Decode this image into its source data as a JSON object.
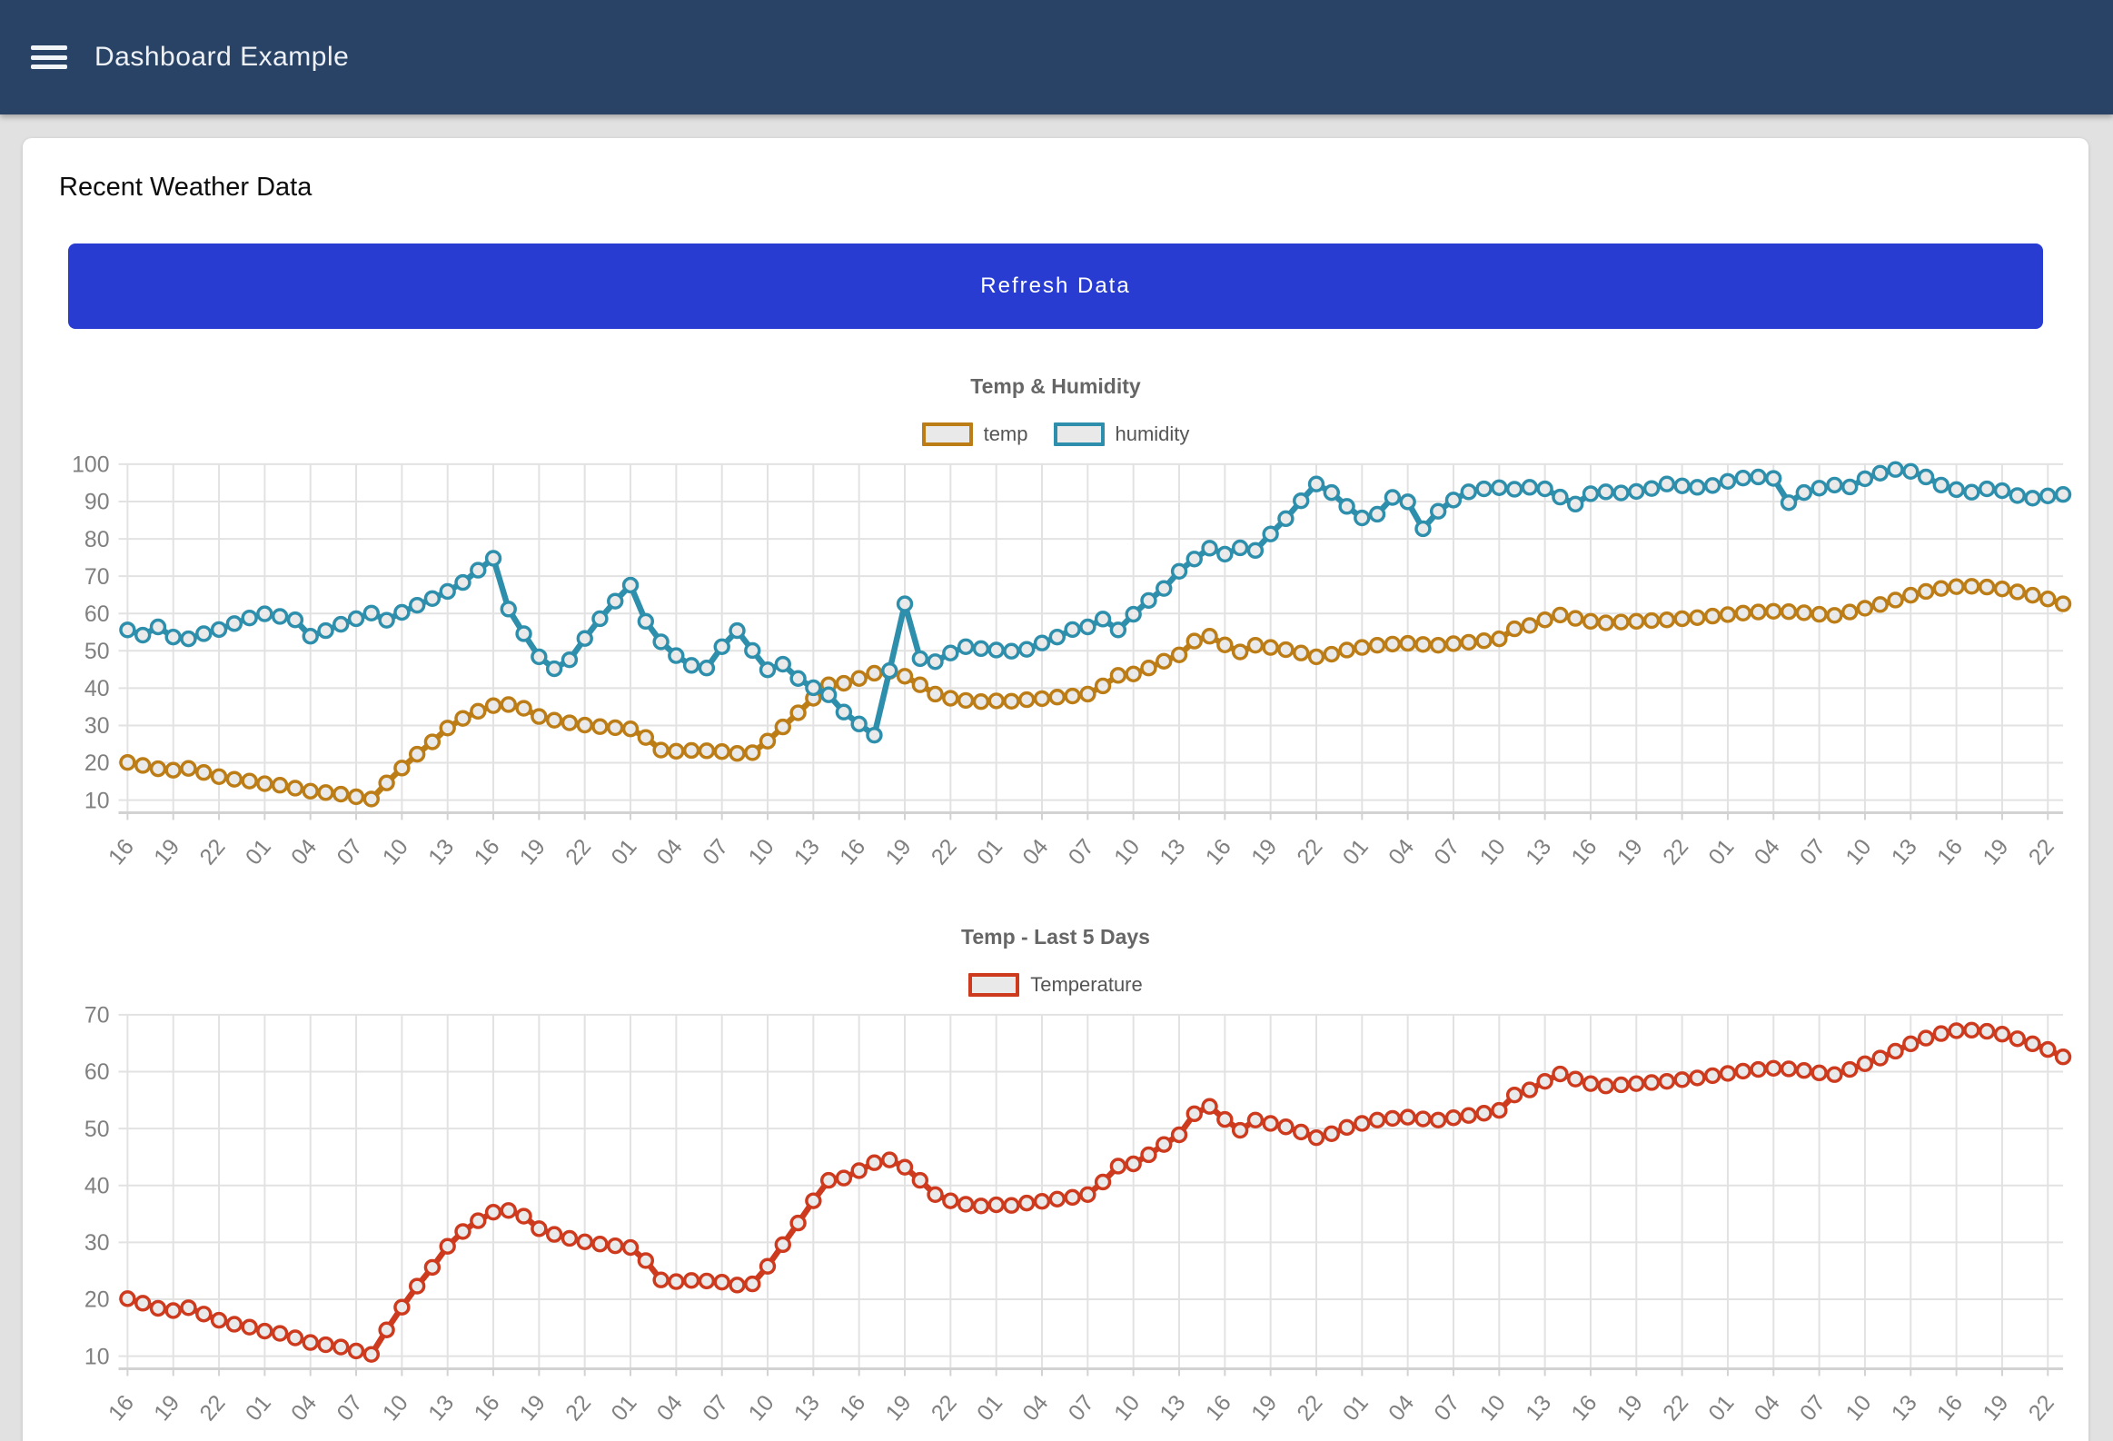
{
  "header": {
    "title": "Dashboard Example",
    "menu_icon": "hamburger-icon"
  },
  "page": {
    "heading": "Recent Weather Data"
  },
  "toolbar": {
    "refresh_label": "Refresh Data"
  },
  "colors": {
    "header_bg": "#294366",
    "button_bg": "#283cd2",
    "temp_series": "#bc7c16",
    "humidity_series": "#2e8fac",
    "temperature_series": "#cd3a1d",
    "marker_fill": "#eaeaea",
    "gridline": "#e2e2e2",
    "axis_line": "#d2d2d2",
    "tick_text": "#808080",
    "title_text": "#666666"
  },
  "chart_data": [
    {
      "type": "line",
      "title": "Temp & Humidity",
      "legend_position": "top",
      "grid": true,
      "ylim": [
        10,
        100
      ],
      "y_ticks": [
        10,
        20,
        30,
        40,
        50,
        60,
        70,
        80,
        90,
        100
      ],
      "x_tick_interval_hours": 3,
      "x_tick_labels": [
        "16",
        "19",
        "22",
        "01",
        "04",
        "07",
        "10",
        "13",
        "16",
        "19",
        "22",
        "01",
        "04",
        "07",
        "10",
        "13",
        "16",
        "19",
        "22",
        "01",
        "04",
        "07",
        "10",
        "13",
        "16",
        "19",
        "22",
        "01",
        "04",
        "07",
        "10",
        "13",
        "16",
        "19",
        "22",
        "01",
        "04",
        "07",
        "10",
        "13",
        "16",
        "19",
        "22"
      ],
      "series": [
        {
          "name": "temp",
          "color": "#bc7c16",
          "values": [
            20.1,
            19.3,
            18.4,
            18.0,
            18.5,
            17.4,
            16.3,
            15.6,
            15.1,
            14.4,
            14.0,
            13.2,
            12.4,
            12.0,
            11.6,
            10.9,
            10.3,
            14.6,
            18.6,
            22.3,
            25.6,
            29.3,
            31.9,
            33.8,
            35.3,
            35.6,
            34.6,
            32.4,
            31.4,
            30.7,
            30.1,
            29.7,
            29.4,
            29.1,
            26.8,
            23.4,
            23.1,
            23.3,
            23.2,
            23.0,
            22.5,
            22.7,
            25.8,
            29.6,
            33.4,
            37.3,
            40.9,
            41.3,
            42.6,
            44.0,
            44.5,
            43.2,
            40.9,
            38.4,
            37.3,
            36.7,
            36.4,
            36.6,
            36.5,
            36.9,
            37.2,
            37.6,
            37.9,
            38.4,
            40.6,
            43.4,
            43.8,
            45.4,
            47.2,
            48.9,
            52.6,
            53.9,
            51.6,
            49.7,
            51.5,
            50.9,
            50.3,
            49.4,
            48.4,
            49.1,
            50.2,
            50.9,
            51.5,
            51.8,
            52.0,
            51.7,
            51.5,
            51.9,
            52.3,
            52.7,
            53.2,
            55.9,
            56.8,
            58.3,
            59.6,
            58.7,
            57.9,
            57.5,
            57.7,
            57.9,
            58.1,
            58.3,
            58.6,
            58.9,
            59.3,
            59.7,
            60.1,
            60.4,
            60.6,
            60.5,
            60.2,
            59.8,
            59.5,
            60.4,
            61.4,
            62.4,
            63.6,
            64.9,
            65.9,
            66.7,
            67.2,
            67.3,
            67.1,
            66.6,
            65.8,
            64.9,
            63.9,
            62.6
          ]
        },
        {
          "name": "humidity",
          "color": "#2e8fac",
          "values": [
            55.6,
            54.2,
            56.4,
            53.7,
            53.2,
            54.6,
            55.7,
            57.3,
            58.8,
            59.9,
            59.2,
            58.3,
            53.9,
            55.4,
            57.1,
            58.6,
            60.1,
            58.2,
            60.3,
            62.2,
            64.0,
            65.9,
            68.3,
            71.6,
            74.8,
            61.2,
            54.6,
            48.4,
            45.2,
            47.6,
            53.3,
            58.6,
            63.3,
            67.6,
            57.9,
            52.4,
            48.7,
            46.1,
            45.4,
            51.1,
            55.4,
            50.1,
            44.9,
            46.4,
            42.6,
            40.1,
            38.2,
            33.6,
            30.4,
            27.4,
            44.7,
            62.6,
            47.9,
            47.1,
            49.4,
            51.1,
            50.6,
            50.2,
            49.9,
            50.4,
            52.1,
            53.7,
            55.7,
            56.4,
            58.5,
            55.6,
            59.8,
            63.5,
            66.7,
            71.3,
            74.6,
            77.5,
            75.9,
            77.6,
            76.9,
            81.3,
            85.4,
            90.2,
            94.7,
            92.4,
            88.7,
            85.6,
            86.6,
            91.1,
            89.9,
            82.7,
            87.4,
            90.4,
            92.6,
            93.4,
            93.7,
            93.3,
            93.8,
            93.4,
            91.2,
            89.3,
            92.1,
            92.6,
            92.3,
            92.7,
            93.5,
            94.7,
            94.2,
            93.8,
            94.3,
            95.4,
            96.3,
            96.6,
            96.2,
            89.7,
            92.4,
            93.6,
            94.4,
            93.9,
            96.1,
            97.6,
            98.6,
            98.1,
            96.6,
            94.4,
            93.2,
            92.5,
            93.4,
            92.9,
            91.6,
            90.9,
            91.5,
            91.9
          ]
        }
      ]
    },
    {
      "type": "line",
      "title": "Temp - Last 5 Days",
      "legend_position": "top",
      "grid": true,
      "ylim": [
        10,
        70
      ],
      "y_ticks": [
        10,
        20,
        30,
        40,
        50,
        60,
        70
      ],
      "x_tick_interval_hours": 3,
      "x_tick_labels": [
        "16",
        "19",
        "22",
        "01",
        "04",
        "07",
        "10",
        "13",
        "16",
        "19",
        "22",
        "01",
        "04",
        "07",
        "10",
        "13",
        "16",
        "19",
        "22",
        "01",
        "04",
        "07",
        "10",
        "13",
        "16",
        "19",
        "22",
        "01",
        "04",
        "07",
        "10",
        "13",
        "16",
        "19",
        "22",
        "01",
        "04",
        "07",
        "10",
        "13",
        "16",
        "19",
        "22"
      ],
      "series": [
        {
          "name": "Temperature",
          "color": "#cd3a1d",
          "values": [
            20.1,
            19.3,
            18.4,
            18.0,
            18.5,
            17.4,
            16.3,
            15.6,
            15.1,
            14.4,
            14.0,
            13.2,
            12.4,
            12.0,
            11.6,
            10.9,
            10.3,
            14.6,
            18.6,
            22.3,
            25.6,
            29.3,
            31.9,
            33.8,
            35.3,
            35.6,
            34.6,
            32.4,
            31.4,
            30.7,
            30.1,
            29.7,
            29.4,
            29.1,
            26.8,
            23.4,
            23.1,
            23.3,
            23.2,
            23.0,
            22.5,
            22.7,
            25.8,
            29.6,
            33.4,
            37.3,
            40.9,
            41.3,
            42.6,
            44.0,
            44.5,
            43.2,
            40.9,
            38.4,
            37.3,
            36.7,
            36.4,
            36.6,
            36.5,
            36.9,
            37.2,
            37.6,
            37.9,
            38.4,
            40.6,
            43.4,
            43.8,
            45.4,
            47.2,
            48.9,
            52.6,
            53.9,
            51.6,
            49.7,
            51.5,
            50.9,
            50.3,
            49.4,
            48.4,
            49.1,
            50.2,
            50.9,
            51.5,
            51.8,
            52.0,
            51.7,
            51.5,
            51.9,
            52.3,
            52.7,
            53.2,
            55.9,
            56.8,
            58.3,
            59.6,
            58.7,
            57.9,
            57.5,
            57.7,
            57.9,
            58.1,
            58.3,
            58.6,
            58.9,
            59.3,
            59.7,
            60.1,
            60.4,
            60.6,
            60.5,
            60.2,
            59.8,
            59.5,
            60.4,
            61.4,
            62.4,
            63.6,
            64.9,
            65.9,
            66.7,
            67.2,
            67.3,
            67.1,
            66.6,
            65.8,
            64.9,
            63.9,
            62.6
          ]
        }
      ]
    }
  ]
}
